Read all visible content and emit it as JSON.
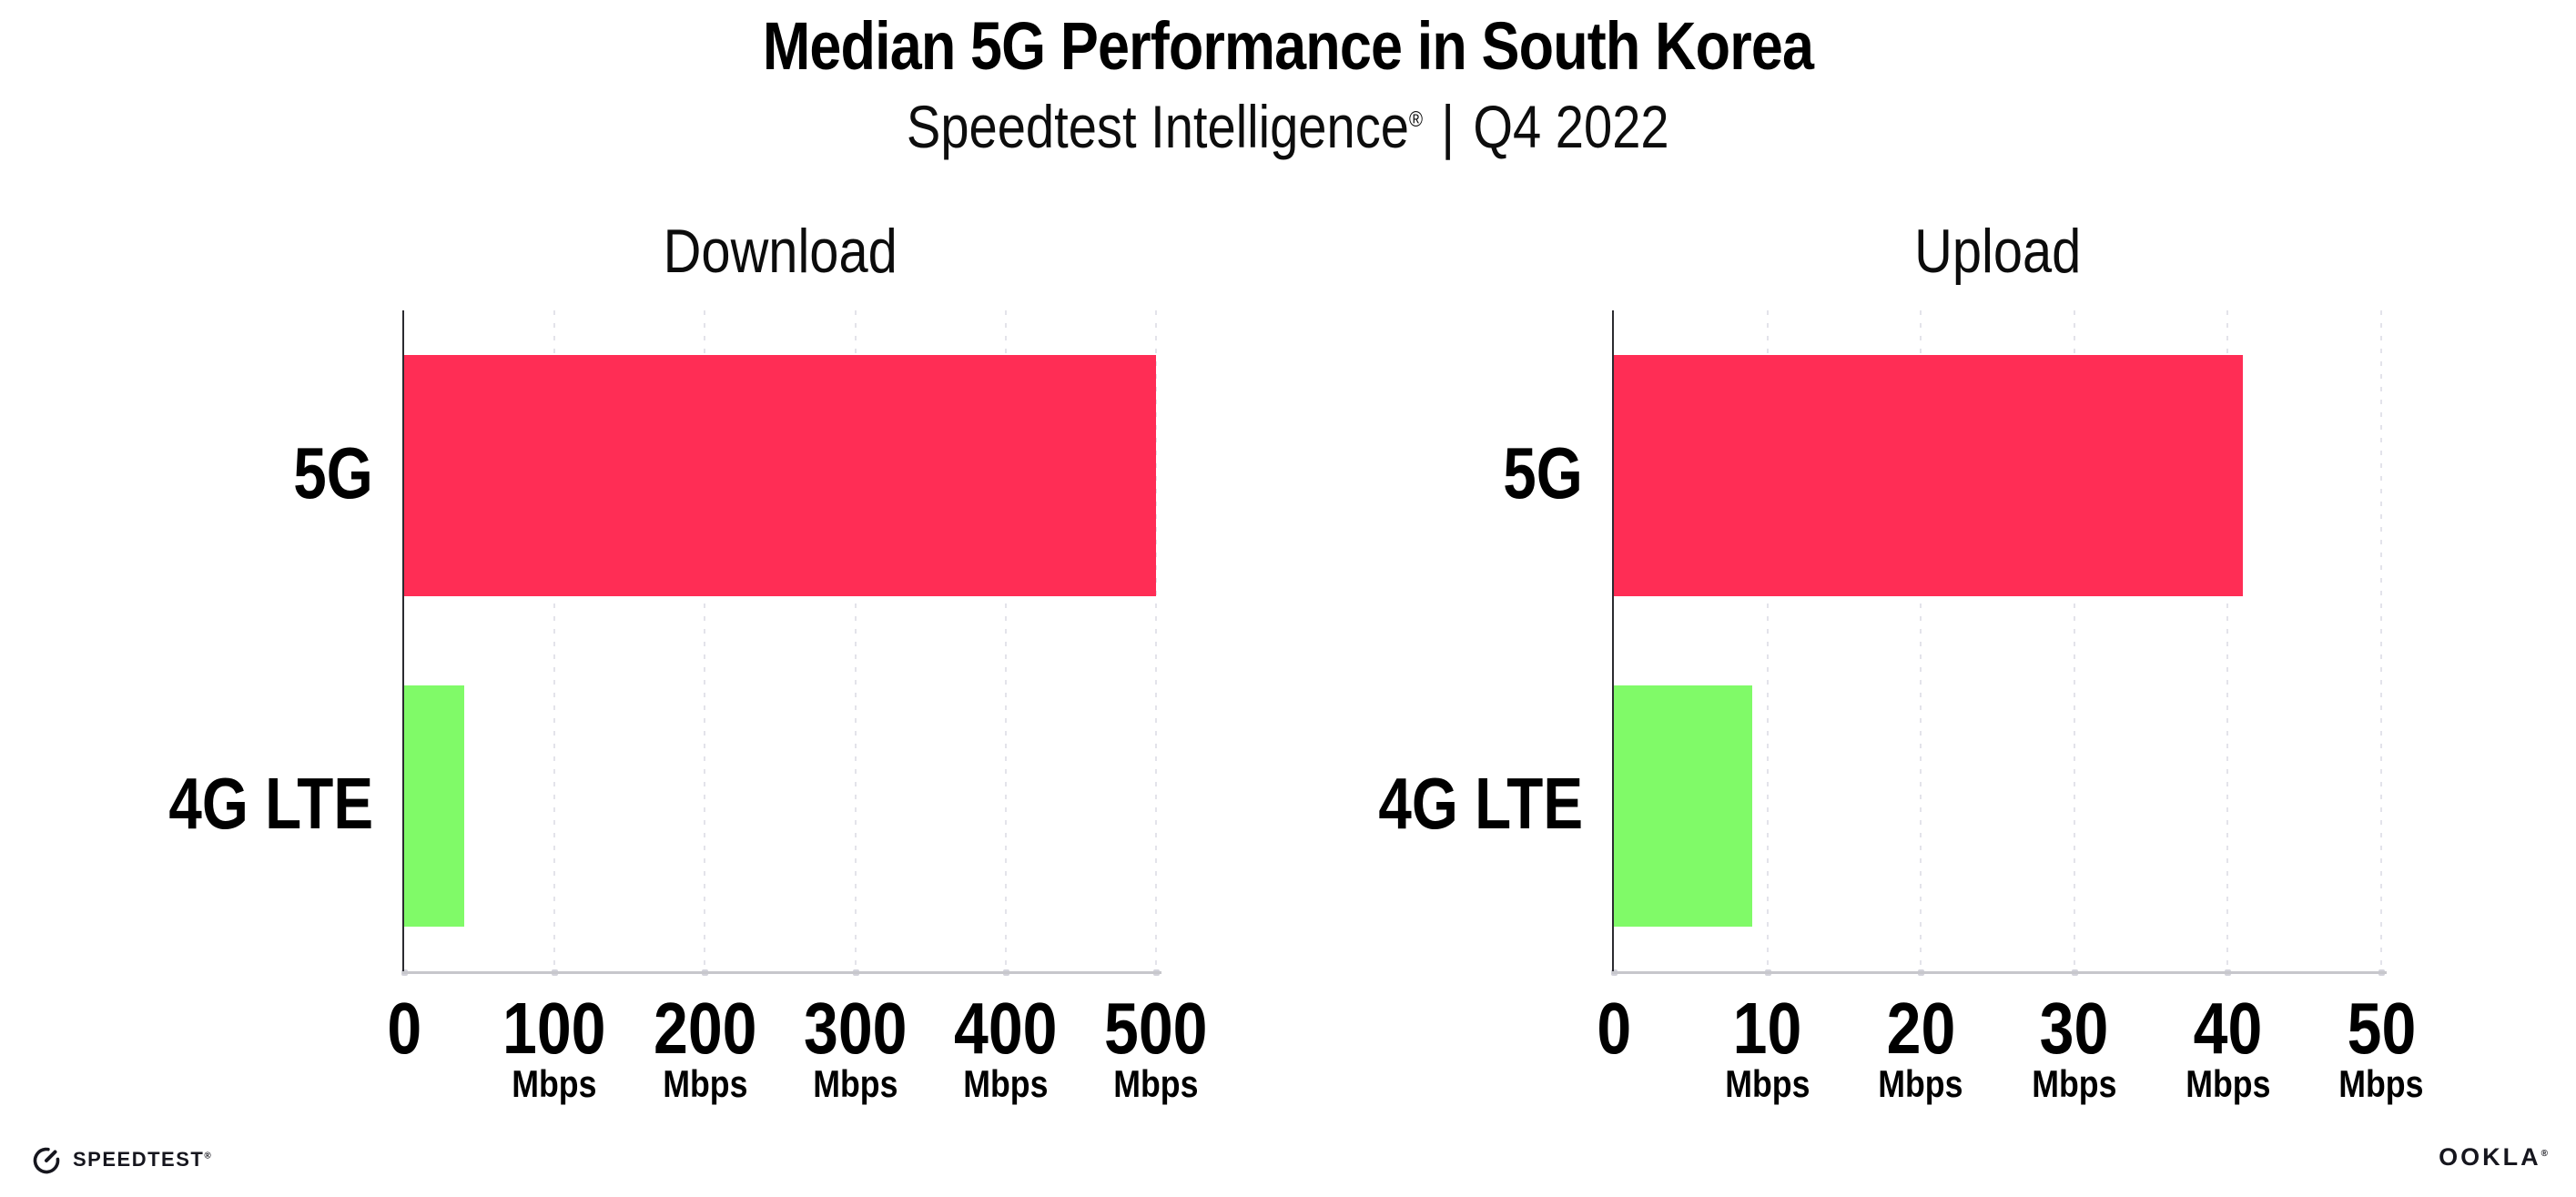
{
  "page": {
    "background_color": "#ffffff"
  },
  "header": {
    "title": "Median 5G Performance in South Korea",
    "subtitle_brand": "Speedtest Intelligence",
    "subtitle_registered": "®",
    "subtitle_divider": "|",
    "subtitle_period": "Q4 2022"
  },
  "chart_data": [
    {
      "type": "bar",
      "orientation": "horizontal",
      "title": "Download",
      "categories": [
        "5G",
        "4G LTE"
      ],
      "values": [
        500,
        40
      ],
      "value_unit": "Mbps",
      "xlim": [
        0,
        500
      ],
      "xticks": [
        0,
        100,
        200,
        300,
        400,
        500
      ],
      "tick_unit_label": "Mbps",
      "bar_colors": [
        "#FF2D55",
        "#80FA68"
      ],
      "grid": "vertical-dotted",
      "legend": "none"
    },
    {
      "type": "bar",
      "orientation": "horizontal",
      "title": "Upload",
      "categories": [
        "5G",
        "4G LTE"
      ],
      "values": [
        41,
        9
      ],
      "value_unit": "Mbps",
      "xlim": [
        0,
        50
      ],
      "xticks": [
        0,
        10,
        20,
        30,
        40,
        50
      ],
      "tick_unit_label": "Mbps",
      "bar_colors": [
        "#FF2D55",
        "#80FA68"
      ],
      "grid": "vertical-dotted",
      "legend": "none"
    }
  ],
  "colors": {
    "bar_5g": "#FF2D55",
    "bar_4g_lte": "#80FA68",
    "x_axis_line": "#c7c7cc",
    "y_axis_line": "#2b2b30",
    "gridline": "#e3e3ea",
    "tick_dot": "#d2d2da",
    "text": "#000000",
    "logo": "#16161e"
  },
  "footer": {
    "speedtest_icon": "gauge-icon",
    "speedtest_label": "SPEEDTEST",
    "speedtest_registered": "®",
    "ookla_label": "OOKLA",
    "ookla_registered": "®"
  }
}
